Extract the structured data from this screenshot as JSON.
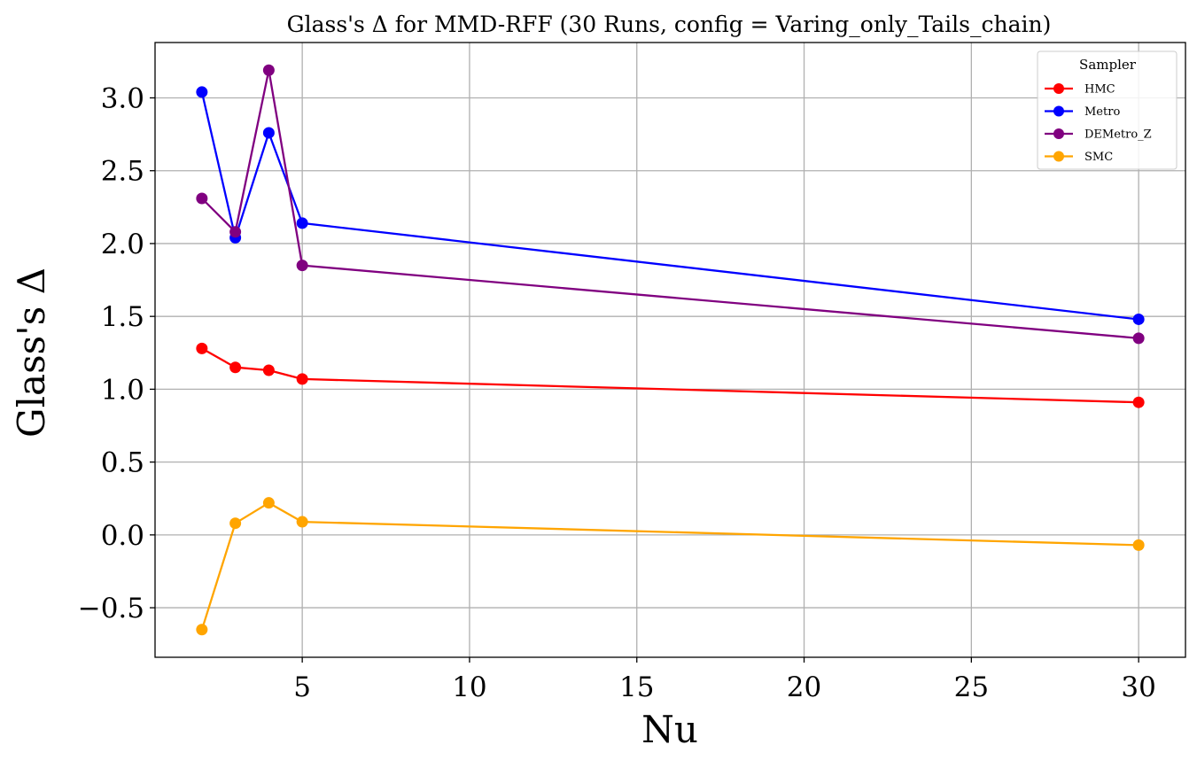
{
  "chart_data": {
    "type": "line",
    "title": "Glass's Δ for MMD-RFF (30 Runs, config = Varing_only_Tails_chain)",
    "xlabel": "Nu",
    "ylabel": "Glass's Δ",
    "xlim": [
      0.6,
      31.4
    ],
    "ylim": [
      -0.84,
      3.38
    ],
    "x_ticks": [
      5,
      10,
      15,
      20,
      25,
      30
    ],
    "x_tick_labels": [
      "5",
      "10",
      "15",
      "20",
      "25",
      "30"
    ],
    "y_ticks": [
      -0.5,
      0.0,
      0.5,
      1.0,
      1.5,
      2.0,
      2.5,
      3.0
    ],
    "y_tick_labels": [
      "−0.5",
      "0.0",
      "0.5",
      "1.0",
      "1.5",
      "2.0",
      "2.5",
      "3.0"
    ],
    "grid": true,
    "legend_title": "Sampler",
    "legend_position": "top-right",
    "x": [
      2,
      3,
      4,
      5,
      30
    ],
    "series": [
      {
        "name": "HMC",
        "color": "#ff0000",
        "values": [
          1.28,
          1.15,
          1.13,
          1.07,
          0.91
        ]
      },
      {
        "name": "Metro",
        "color": "#0000ff",
        "values": [
          3.04,
          2.04,
          2.76,
          2.14,
          1.48
        ]
      },
      {
        "name": "DEMetro_Z",
        "color": "#800080",
        "values": [
          2.31,
          2.08,
          3.19,
          1.85,
          1.35
        ]
      },
      {
        "name": "SMC",
        "color": "#ffa500",
        "values": [
          -0.65,
          0.08,
          0.22,
          0.09,
          -0.07
        ]
      }
    ]
  }
}
